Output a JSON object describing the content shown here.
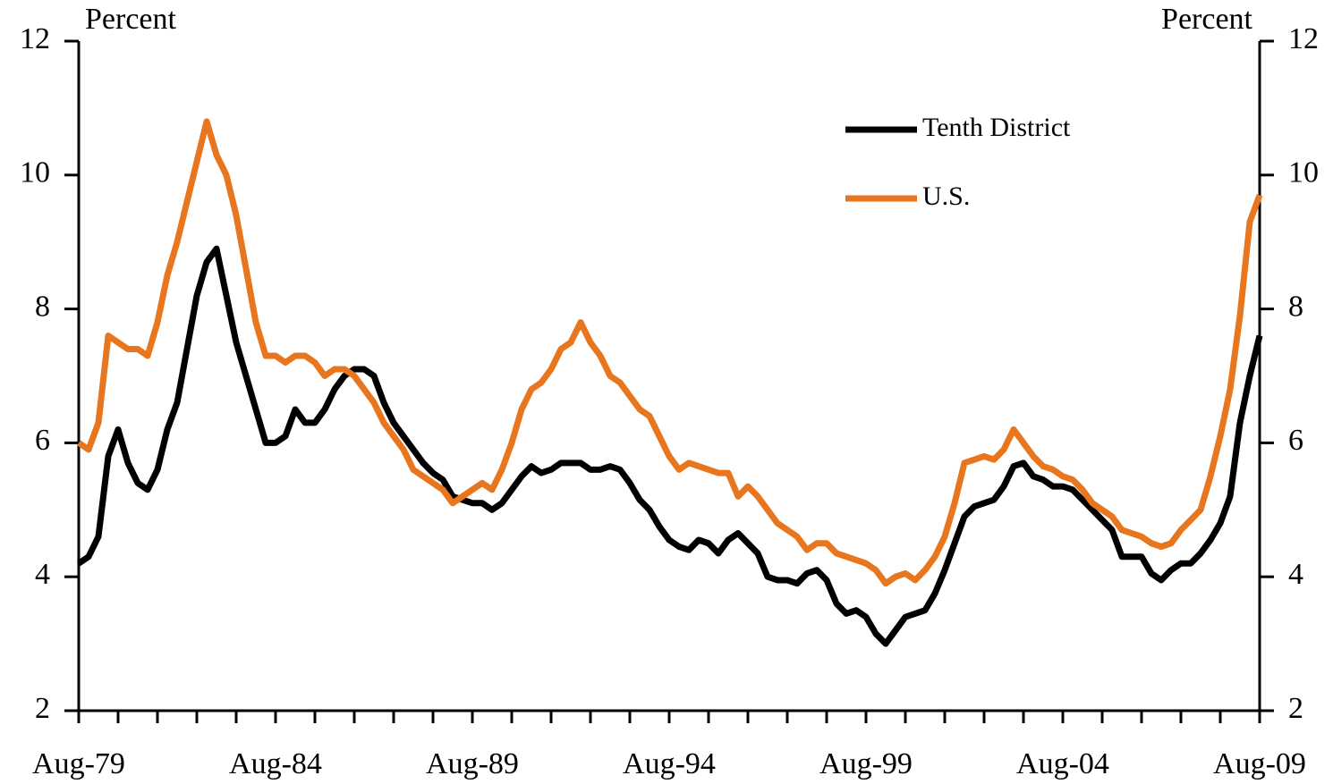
{
  "chart_data": {
    "type": "line",
    "ylabel": "Percent",
    "y2label": "Percent",
    "categories": [
      "Aug-79",
      null,
      null,
      null,
      null,
      null,
      null,
      null,
      null,
      null,
      null,
      null,
      null,
      null,
      null,
      null,
      null,
      null,
      null,
      null,
      "Aug-84",
      null,
      null,
      null,
      null,
      null,
      null,
      null,
      null,
      null,
      null,
      null,
      null,
      null,
      null,
      null,
      null,
      null,
      null,
      null,
      "Aug-89",
      null,
      null,
      null,
      null,
      null,
      null,
      null,
      null,
      null,
      null,
      null,
      null,
      null,
      null,
      null,
      null,
      null,
      null,
      null,
      "Aug-94",
      null,
      null,
      null,
      null,
      null,
      null,
      null,
      null,
      null,
      null,
      null,
      null,
      null,
      null,
      null,
      null,
      null,
      null,
      null,
      "Aug-99",
      null,
      null,
      null,
      null,
      null,
      null,
      null,
      null,
      null,
      null,
      null,
      null,
      null,
      null,
      null,
      null,
      null,
      null,
      null,
      "Aug-04",
      null,
      null,
      null,
      null,
      null,
      null,
      null,
      null,
      null,
      null,
      null,
      null,
      null,
      null,
      null,
      null,
      null,
      null,
      null,
      "Aug-09"
    ],
    "series": [
      {
        "name": "Tenth District",
        "color": "#000000",
        "values": [
          4.2,
          4.3,
          4.6,
          5.8,
          6.2,
          5.7,
          5.4,
          5.3,
          5.6,
          6.2,
          6.6,
          7.4,
          8.2,
          8.7,
          8.9,
          8.2,
          7.5,
          7.0,
          6.5,
          6.0,
          6.0,
          6.1,
          6.5,
          6.3,
          6.3,
          6.5,
          6.8,
          7.0,
          7.1,
          7.1,
          7.0,
          6.6,
          6.3,
          6.1,
          5.9,
          5.7,
          5.55,
          5.45,
          5.2,
          5.15,
          5.1,
          5.1,
          5.0,
          5.1,
          5.3,
          5.5,
          5.65,
          5.55,
          5.6,
          5.7,
          5.7,
          5.7,
          5.6,
          5.6,
          5.65,
          5.6,
          5.4,
          5.15,
          5.0,
          4.75,
          4.55,
          4.45,
          4.4,
          4.55,
          4.5,
          4.35,
          4.55,
          4.65,
          4.5,
          4.35,
          4.0,
          3.95,
          3.95,
          3.9,
          4.05,
          4.1,
          3.95,
          3.6,
          3.45,
          3.5,
          3.4,
          3.15,
          3.0,
          3.2,
          3.4,
          3.45,
          3.5,
          3.75,
          4.1,
          4.5,
          4.9,
          5.05,
          5.1,
          5.15,
          5.35,
          5.65,
          5.7,
          5.5,
          5.45,
          5.35,
          5.35,
          5.3,
          5.15,
          5.0,
          4.85,
          4.7,
          4.3,
          4.3,
          4.3,
          4.05,
          3.95,
          4.1,
          4.2,
          4.2,
          4.35,
          4.55,
          4.8,
          5.2,
          6.3,
          7.0,
          7.6
        ]
      },
      {
        "name": "U.S.",
        "color": "#e8761e",
        "values": [
          6.0,
          5.9,
          6.3,
          7.6,
          7.5,
          7.4,
          7.4,
          7.3,
          7.8,
          8.5,
          9.0,
          9.6,
          10.2,
          10.8,
          10.3,
          10.0,
          9.4,
          8.6,
          7.8,
          7.3,
          7.3,
          7.2,
          7.3,
          7.3,
          7.2,
          7.0,
          7.1,
          7.1,
          7.0,
          6.8,
          6.6,
          6.3,
          6.1,
          5.9,
          5.6,
          5.5,
          5.4,
          5.3,
          5.1,
          5.2,
          5.3,
          5.4,
          5.3,
          5.6,
          6.0,
          6.5,
          6.8,
          6.9,
          7.1,
          7.4,
          7.5,
          7.8,
          7.5,
          7.3,
          7.0,
          6.9,
          6.7,
          6.5,
          6.4,
          6.1,
          5.8,
          5.6,
          5.7,
          5.65,
          5.6,
          5.55,
          5.55,
          5.2,
          5.35,
          5.2,
          5.0,
          4.8,
          4.7,
          4.6,
          4.4,
          4.5,
          4.5,
          4.35,
          4.3,
          4.25,
          4.2,
          4.1,
          3.9,
          4.0,
          4.05,
          3.95,
          4.1,
          4.3,
          4.6,
          5.1,
          5.7,
          5.75,
          5.8,
          5.75,
          5.9,
          6.2,
          6.0,
          5.8,
          5.65,
          5.6,
          5.5,
          5.45,
          5.3,
          5.1,
          5.0,
          4.9,
          4.7,
          4.65,
          4.6,
          4.5,
          4.45,
          4.5,
          4.7,
          4.85,
          5.0,
          5.5,
          6.1,
          6.8,
          7.9,
          9.3,
          9.7
        ]
      }
    ],
    "ylim": [
      2,
      12
    ],
    "yticks": [
      2,
      4,
      6,
      8,
      10,
      12
    ],
    "y2lim": [
      2,
      12
    ],
    "y2ticks": [
      2,
      4,
      6,
      8,
      10,
      12
    ],
    "grid": false,
    "legend": "upper right"
  }
}
